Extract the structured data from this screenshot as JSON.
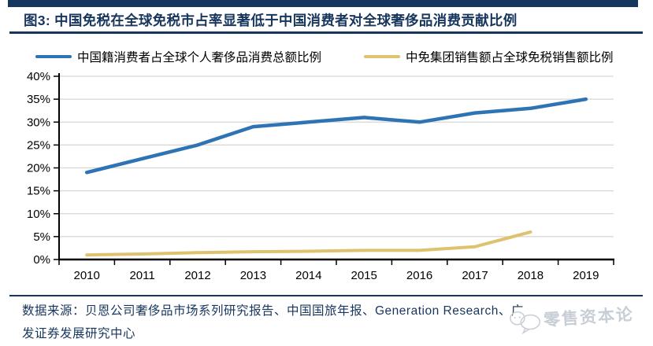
{
  "header": {
    "accent_color": "#17365D"
  },
  "chart_data": {
    "type": "line",
    "title": "图3: 中国免税在全球免税市占率显著低于中国消费者对全球奢侈品消费贡献比例",
    "categories": [
      "2010",
      "2011",
      "2012",
      "2013",
      "2014",
      "2015",
      "2016",
      "2017",
      "2018",
      "2019"
    ],
    "series": [
      {
        "name": "中国籍消费者占全球个人奢侈品消费总额比例",
        "color": "#2E74B5",
        "values": [
          19,
          22,
          25,
          29,
          30,
          31,
          30,
          32,
          33,
          35
        ]
      },
      {
        "name": "中免集团销售额占全球免税销售额比例",
        "color": "#DFC26E",
        "values": [
          1,
          1.2,
          1.5,
          1.7,
          1.8,
          2,
          2,
          2.8,
          6,
          null
        ]
      }
    ],
    "ylim": [
      0,
      40
    ],
    "ytick_step": 5,
    "yticks": [
      "40%",
      "35%",
      "30%",
      "25%",
      "20%",
      "15%",
      "10%",
      "5%",
      "0%"
    ],
    "grid": true,
    "grid_color": "#D6D6D6",
    "axis_color": "#000000",
    "legend_position": "top"
  },
  "footer": {
    "source_line1": "数据来源：贝恩公司奢侈品市场系列研究报告、中国国旅年报、Generation Research、广",
    "source_line2": "发证券发展研究中心",
    "watermark": "零售资本论",
    "watermark_color": "#C6CCD4"
  }
}
